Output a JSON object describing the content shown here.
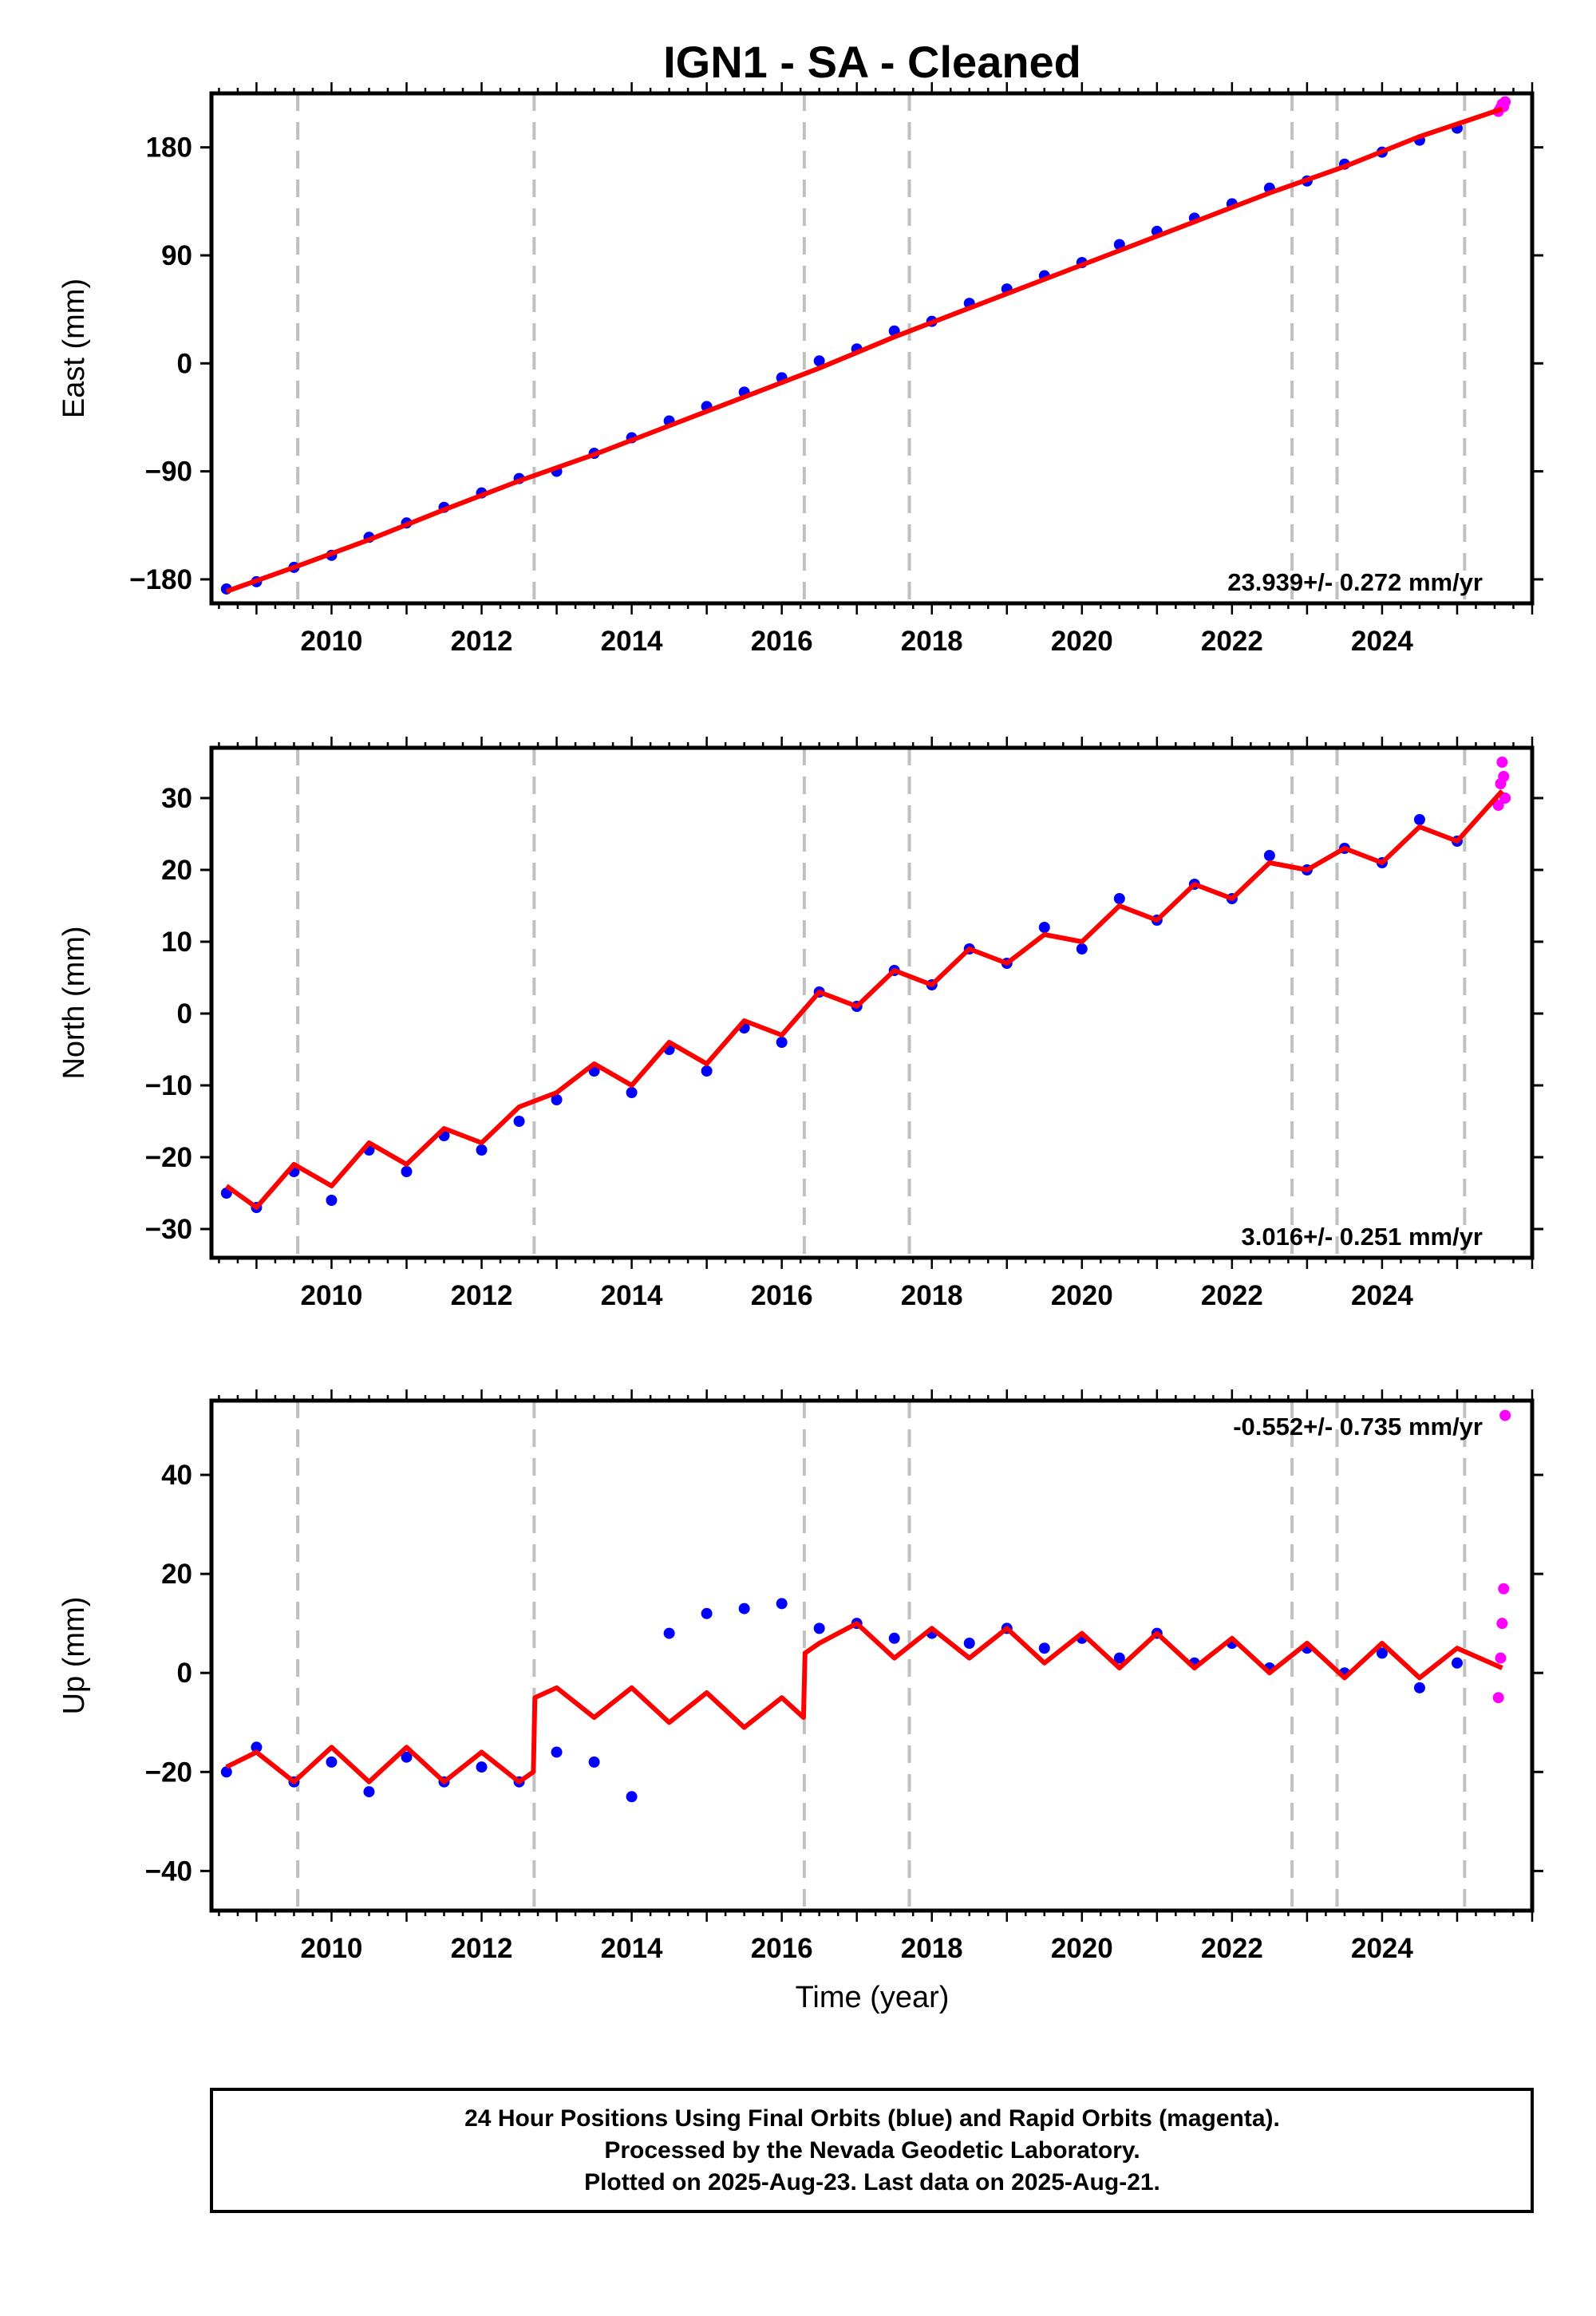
{
  "title": "IGN1  - SA - Cleaned",
  "xlabel": "Time (year)",
  "footer": {
    "line1": "24 Hour Positions Using Final Orbits (blue) and Rapid Orbits (magenta).",
    "line2": "Processed by the Nevada Geodetic Laboratory.",
    "line3": "Plotted on 2025-Aug-23. Last data on 2025-Aug-21."
  },
  "colors": {
    "final": "#0000ff",
    "rapid": "#ff00ff",
    "model": "#ff0000",
    "steps": "#c0c0c0"
  },
  "chart_data": [
    {
      "type": "scatter",
      "component": "east",
      "ylabel": "East (mm)",
      "rate_label": "23.939+/- 0.272 mm/yr",
      "xlim": [
        2008.4,
        2026.0
      ],
      "ylim": [
        -200,
        225
      ],
      "yticks": [
        -180,
        -90,
        0,
        90,
        180
      ],
      "xticks": [
        2010,
        2012,
        2014,
        2016,
        2018,
        2020,
        2022,
        2024
      ],
      "steps": [
        2009.55,
        2012.7,
        2016.3,
        2017.7,
        2022.8,
        2023.4,
        2025.1
      ],
      "series": [
        {
          "series_kind": "final",
          "x": [
            2008.6,
            2009.0,
            2009.5,
            2010.0,
            2010.5,
            2011.0,
            2011.5,
            2012.0,
            2012.5,
            2013.0,
            2013.5,
            2014.0,
            2014.5,
            2015.0,
            2015.5,
            2016.0,
            2016.5,
            2017.0,
            2017.5,
            2018.0,
            2018.5,
            2019.0,
            2019.5,
            2020.0,
            2020.5,
            2021.0,
            2021.5,
            2022.0,
            2022.5,
            2023.0,
            2023.5,
            2024.0,
            2024.5,
            2025.0
          ],
          "y": [
            -188,
            -182,
            -170,
            -160,
            -145,
            -133,
            -120,
            -108,
            -96,
            -90,
            -75,
            -62,
            -48,
            -36,
            -24,
            -12,
            2,
            12,
            27,
            35,
            50,
            62,
            73,
            84,
            99,
            110,
            121,
            133,
            146,
            152,
            166,
            176,
            186,
            196
          ]
        },
        {
          "series_kind": "rapid",
          "x": [
            2025.55,
            2025.58,
            2025.6,
            2025.62,
            2025.64
          ],
          "y": [
            210,
            213,
            216,
            214,
            218
          ]
        },
        {
          "series_kind": "model",
          "x": [
            2008.6,
            2009.5,
            2010.5,
            2011.5,
            2012.5,
            2013.5,
            2014.5,
            2015.5,
            2016.5,
            2017.5,
            2018.5,
            2019.5,
            2020.5,
            2021.5,
            2022.5,
            2023.5,
            2024.5,
            2025.6
          ],
          "y": [
            -190,
            -170,
            -147,
            -122,
            -98,
            -76,
            -52,
            -28,
            -4,
            22,
            46,
            70,
            94,
            118,
            142,
            164,
            189,
            212
          ]
        }
      ]
    },
    {
      "type": "scatter",
      "component": "north",
      "ylabel": "North (mm)",
      "rate_label": "3.016+/- 0.251 mm/yr",
      "xlim": [
        2008.4,
        2026.0
      ],
      "ylim": [
        -34,
        37
      ],
      "yticks": [
        -30,
        -20,
        -10,
        0,
        10,
        20,
        30
      ],
      "xticks": [
        2010,
        2012,
        2014,
        2016,
        2018,
        2020,
        2022,
        2024
      ],
      "steps": [
        2009.55,
        2012.7,
        2016.3,
        2017.7,
        2022.8,
        2023.4,
        2025.1
      ],
      "series": [
        {
          "series_kind": "final",
          "x": [
            2008.6,
            2009.0,
            2009.5,
            2010.0,
            2010.5,
            2011.0,
            2011.5,
            2012.0,
            2012.5,
            2013.0,
            2013.5,
            2014.0,
            2014.5,
            2015.0,
            2015.5,
            2016.0,
            2016.5,
            2017.0,
            2017.5,
            2018.0,
            2018.5,
            2019.0,
            2019.5,
            2020.0,
            2020.5,
            2021.0,
            2021.5,
            2022.0,
            2022.5,
            2023.0,
            2023.5,
            2024.0,
            2024.5,
            2025.0
          ],
          "y": [
            -25,
            -27,
            -22,
            -26,
            -19,
            -22,
            -17,
            -19,
            -15,
            -12,
            -8,
            -11,
            -5,
            -8,
            -2,
            -4,
            3,
            1,
            6,
            4,
            9,
            7,
            12,
            9,
            16,
            13,
            18,
            16,
            22,
            20,
            23,
            21,
            27,
            24
          ]
        },
        {
          "series_kind": "rapid",
          "x": [
            2025.55,
            2025.58,
            2025.6,
            2025.62,
            2025.64
          ],
          "y": [
            29,
            32,
            35,
            33,
            30
          ]
        },
        {
          "series_kind": "model",
          "x": [
            2008.6,
            2009.0,
            2009.5,
            2010.0,
            2010.5,
            2011.0,
            2011.5,
            2012.0,
            2012.5,
            2013.0,
            2013.5,
            2014.0,
            2014.5,
            2015.0,
            2015.5,
            2016.0,
            2016.5,
            2017.0,
            2017.5,
            2018.0,
            2018.5,
            2019.0,
            2019.5,
            2020.0,
            2020.5,
            2021.0,
            2021.5,
            2022.0,
            2022.5,
            2023.0,
            2023.5,
            2024.0,
            2024.5,
            2025.0,
            2025.6
          ],
          "y": [
            -24,
            -27,
            -21,
            -24,
            -18,
            -21,
            -16,
            -18,
            -13,
            -11,
            -7,
            -10,
            -4,
            -7,
            -1,
            -3,
            3,
            1,
            6,
            4,
            9,
            7,
            11,
            10,
            15,
            13,
            18,
            16,
            21,
            20,
            23,
            21,
            26,
            24,
            31
          ]
        }
      ]
    },
    {
      "type": "scatter",
      "component": "up",
      "ylabel": "Up (mm)",
      "rate_label": "-0.552+/- 0.735 mm/yr",
      "xlim": [
        2008.4,
        2026.0
      ],
      "ylim": [
        -48,
        55
      ],
      "yticks": [
        -40,
        -20,
        0,
        20,
        40
      ],
      "xticks": [
        2010,
        2012,
        2014,
        2016,
        2018,
        2020,
        2022,
        2024
      ],
      "steps": [
        2009.55,
        2012.7,
        2016.3,
        2017.7,
        2022.8,
        2023.4,
        2025.1
      ],
      "series": [
        {
          "series_kind": "final",
          "x": [
            2008.6,
            2009.0,
            2009.5,
            2010.0,
            2010.5,
            2011.0,
            2011.5,
            2012.0,
            2012.5,
            2013.0,
            2013.5,
            2014.0,
            2014.5,
            2015.0,
            2015.5,
            2016.0,
            2016.5,
            2017.0,
            2017.5,
            2018.0,
            2018.5,
            2019.0,
            2019.5,
            2020.0,
            2020.5,
            2021.0,
            2021.5,
            2022.0,
            2022.5,
            2023.0,
            2023.5,
            2024.0,
            2024.5,
            2025.0
          ],
          "y": [
            -20,
            -15,
            -22,
            -18,
            -24,
            -17,
            -22,
            -19,
            -22,
            -16,
            -18,
            -25,
            8,
            12,
            13,
            14,
            9,
            10,
            7,
            8,
            6,
            9,
            5,
            7,
            3,
            8,
            2,
            6,
            1,
            5,
            0,
            4,
            -3,
            2
          ]
        },
        {
          "series_kind": "rapid",
          "x": [
            2025.55,
            2025.58,
            2025.6,
            2025.62,
            2025.64
          ],
          "y": [
            -5,
            3,
            10,
            17,
            52
          ]
        },
        {
          "series_kind": "model",
          "x": [
            2008.6,
            2009.0,
            2009.5,
            2010.0,
            2010.5,
            2011.0,
            2011.5,
            2012.0,
            2012.5,
            2012.69,
            2012.71,
            2013.0,
            2013.5,
            2014.0,
            2014.5,
            2015.0,
            2015.5,
            2016.0,
            2016.29,
            2016.31,
            2016.5,
            2017.0,
            2017.5,
            2018.0,
            2018.5,
            2019.0,
            2019.5,
            2020.0,
            2020.5,
            2021.0,
            2021.5,
            2022.0,
            2022.5,
            2023.0,
            2023.5,
            2024.0,
            2024.5,
            2025.0,
            2025.6
          ],
          "y": [
            -19,
            -16,
            -22,
            -15,
            -22,
            -15,
            -22,
            -16,
            -22,
            -20,
            -5,
            -3,
            -9,
            -3,
            -10,
            -4,
            -11,
            -5,
            -9,
            4,
            6,
            10,
            3,
            9,
            3,
            9,
            2,
            8,
            1,
            8,
            1,
            7,
            0,
            6,
            -1,
            6,
            -1,
            5,
            1
          ]
        }
      ]
    }
  ]
}
